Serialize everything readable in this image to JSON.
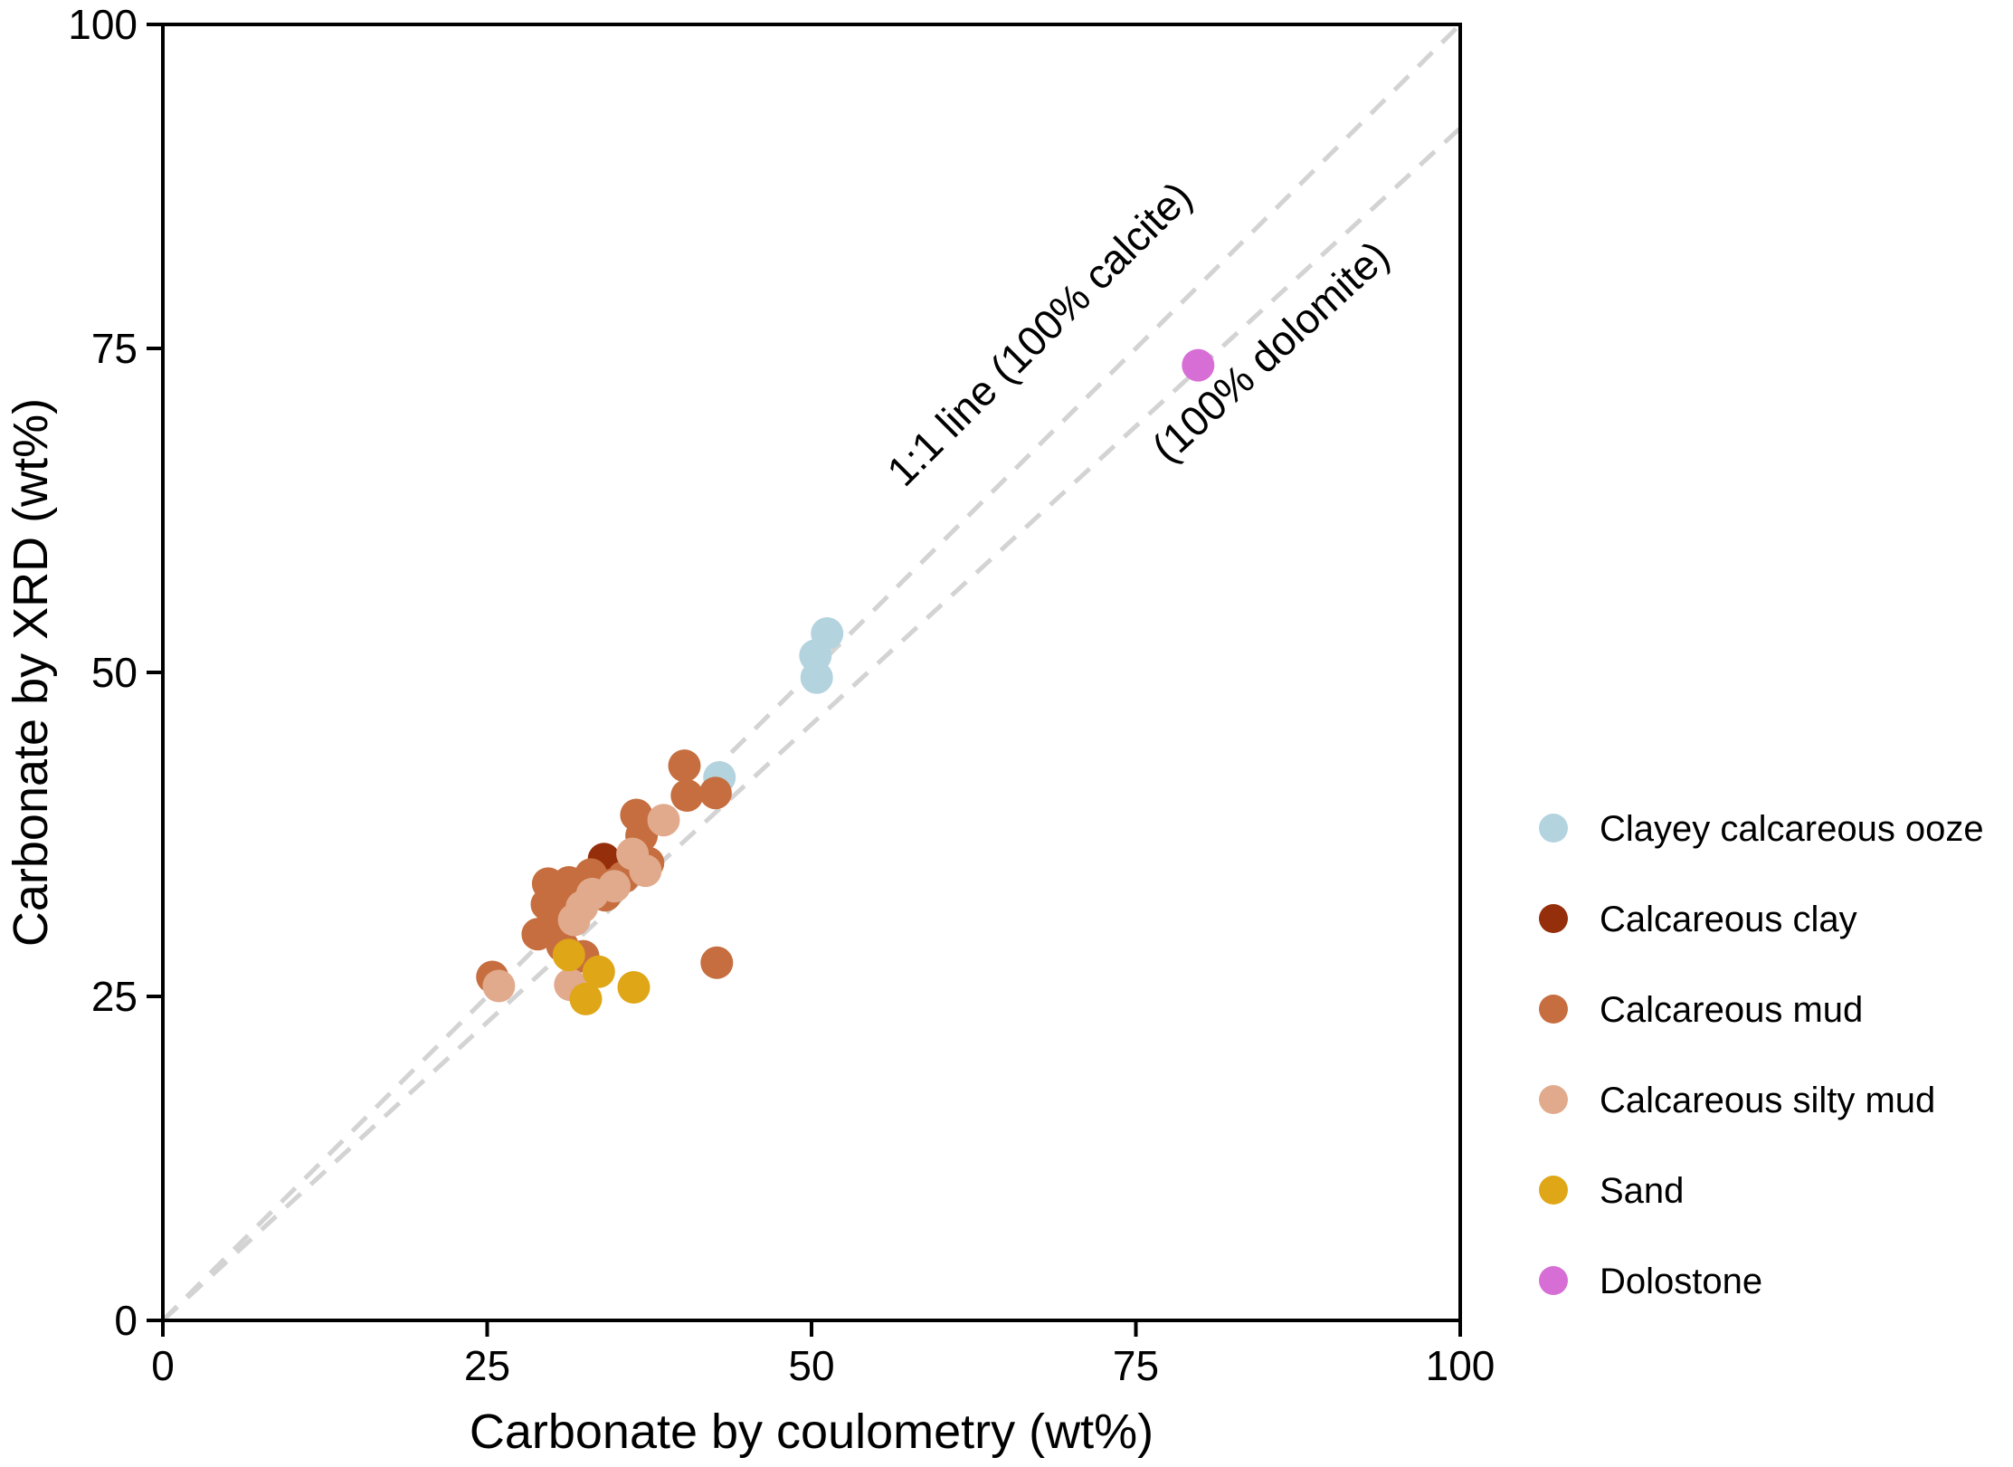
{
  "chart_data": {
    "type": "scatter",
    "xlabel": "Carbonate by coulometry (wt%)",
    "ylabel": "Carbonate by XRD (wt%)",
    "xlim": [
      0,
      100
    ],
    "ylim": [
      0,
      100
    ],
    "xticks": [
      "0",
      "25",
      "50",
      "75",
      "100"
    ],
    "yticks": [
      "0",
      "25",
      "50",
      "75",
      "100"
    ],
    "grid": false,
    "legend_position": "right",
    "reference_lines": [
      {
        "label": "1:1 line (100% calcite)",
        "slope": 1.0,
        "color": "#d3d3d3"
      },
      {
        "label": "(100% dolomite)",
        "slope": 0.92,
        "color": "#d3d3d3"
      }
    ],
    "series": [
      {
        "name": "Clayey calcareous ooze",
        "color": "#b3d3df",
        "points": [
          [
            51.2,
            53.0
          ],
          [
            50.3,
            51.3
          ],
          [
            50.4,
            49.6
          ],
          [
            42.9,
            41.9
          ]
        ]
      },
      {
        "name": "Calcareous clay",
        "color": "#952e0a",
        "points": [
          [
            34.0,
            35.6
          ],
          [
            33.4,
            34.5
          ]
        ]
      },
      {
        "name": "Calcareous mud",
        "color": "#c66e3f",
        "points": [
          [
            40.2,
            42.8
          ],
          [
            40.4,
            40.5
          ],
          [
            42.6,
            40.7
          ],
          [
            36.5,
            39.0
          ],
          [
            36.9,
            37.4
          ],
          [
            37.4,
            35.3
          ],
          [
            35.5,
            34.2
          ],
          [
            34.6,
            33.6
          ],
          [
            33.0,
            34.4
          ],
          [
            34.1,
            32.8
          ],
          [
            31.3,
            33.8
          ],
          [
            29.7,
            33.7
          ],
          [
            30.3,
            32.3
          ],
          [
            29.6,
            32.1
          ],
          [
            31.6,
            31.8
          ],
          [
            31.0,
            31.1
          ],
          [
            30.0,
            30.6
          ],
          [
            28.9,
            29.8
          ],
          [
            30.8,
            28.9
          ],
          [
            32.4,
            28.1
          ],
          [
            25.4,
            26.5
          ],
          [
            42.7,
            27.6
          ]
        ]
      },
      {
        "name": "Calcareous silty mud",
        "color": "#e1aa8c",
        "points": [
          [
            38.6,
            38.6
          ],
          [
            36.2,
            36.0
          ],
          [
            37.2,
            34.7
          ],
          [
            34.8,
            33.5
          ],
          [
            33.1,
            32.9
          ],
          [
            32.3,
            31.9
          ],
          [
            31.7,
            30.9
          ],
          [
            25.9,
            25.8
          ],
          [
            31.4,
            25.9
          ]
        ]
      },
      {
        "name": "Sand",
        "color": "#dfa617",
        "points": [
          [
            31.3,
            28.2
          ],
          [
            33.6,
            26.9
          ],
          [
            36.3,
            25.7
          ],
          [
            32.6,
            24.8
          ]
        ]
      },
      {
        "name": "Dolostone",
        "color": "#d66ed6",
        "points": [
          [
            79.8,
            73.7
          ]
        ]
      }
    ]
  }
}
